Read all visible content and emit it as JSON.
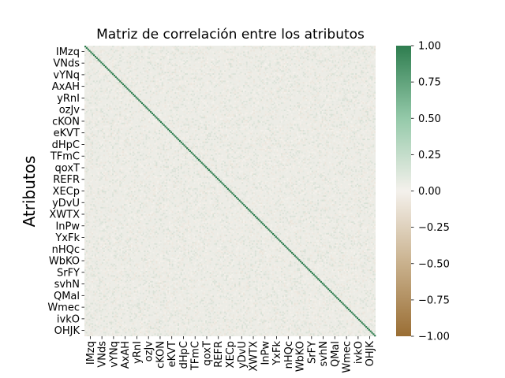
{
  "chart_data": {
    "type": "heatmap",
    "title": "Matriz de correlación entre los atributos",
    "xlabel": "",
    "ylabel": "Atributos",
    "tick_labels": [
      "IMzq",
      "VNds",
      "vYNq",
      "AxAH",
      "yRnI",
      "ozJv",
      "cKON",
      "eKVT",
      "dHpC",
      "TFmC",
      "qoxT",
      "REFR",
      "XECp",
      "yDvU",
      "XWTX",
      "InPw",
      "YxFk",
      "nHQc",
      "WbKO",
      "SrFY",
      "svhN",
      "QMal",
      "Wmec",
      "ivkO",
      "OHJK"
    ],
    "matrix_size": 200,
    "diagonal_value": 1.0,
    "off_diagonal_range": [
      -0.1,
      0.15
    ],
    "value_range": [
      -1.0,
      1.0
    ],
    "colorbar": {
      "ticks": [
        "1.00",
        "0.75",
        "0.50",
        "0.25",
        "0.00",
        "−0.25",
        "−0.50",
        "−0.75",
        "−1.00"
      ],
      "tick_values": [
        1.0,
        0.75,
        0.5,
        0.25,
        0.0,
        -0.25,
        -0.5,
        -0.75,
        -1.0
      ],
      "colors": {
        "high": "#2e7d4f",
        "mid": "#f4f1ec",
        "low": "#9a6e34"
      }
    }
  }
}
